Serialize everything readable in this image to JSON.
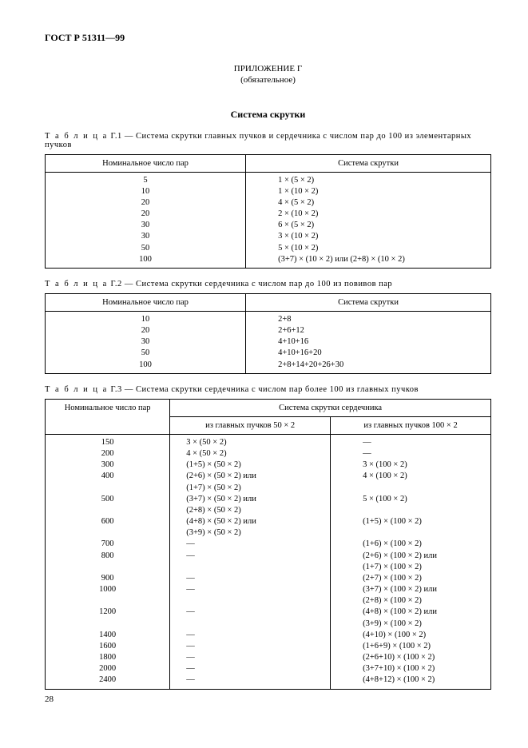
{
  "doc": {
    "header": "ГОСТ Р 51311—99",
    "appendix_title_line1": "ПРИЛОЖЕНИЕ Г",
    "appendix_title_line2": "(обязательное)",
    "section_title": "Система скрутки",
    "page_number": "28"
  },
  "table1": {
    "caption_prefix": "Т а б л и ц а",
    "caption_rest": "  Г.1 — Система скрутки главных пучков и сердечника с числом пар до 100  из элементарных пучков",
    "columns": [
      "Номинальное число пар",
      "Система скрутки"
    ],
    "col1": "5\n10\n20\n20\n30\n30\n50\n100",
    "col2": "1 × (5 × 2)\n1 × (10 × 2)\n4 × (5 × 2)\n2 × (10 × 2)\n6 × (5 × 2)\n3 × (10 × 2)\n5 × (10 × 2)\n(3+7) × (10 × 2) или (2+8) × (10 × 2)"
  },
  "table2": {
    "caption_prefix": "Т а б л и ц а",
    "caption_rest": " Г.2 — Система скрутки сердечника с числом пар до 100  из повивов пар",
    "columns": [
      "Номинальное число пар",
      "Система скрутки"
    ],
    "col1": "10\n20\n30\n50\n100",
    "col2": "2+8\n2+6+12\n4+10+16\n4+10+16+20\n2+8+14+20+26+30"
  },
  "table3": {
    "caption_prefix": "Т а б л и ц а",
    "caption_rest": "  Г.3 — Система скрутки сердечника с числом пар более 100  из главных пучков",
    "col1_header": "Номинальное число пар",
    "span_header": "Система скрутки сердечника",
    "col2_header": "из главных пучков 50 × 2",
    "col3_header": "из главных пучков 100 × 2",
    "col1": "150\n200\n300\n400\n\n500\n\n600\n\n700\n800\n\n900\n1000\n\n1200\n\n1400\n1600\n1800\n2000\n2400",
    "col2": "3 × (50 × 2)\n4 × (50 × 2)\n(1+5) × (50 × 2)\n(2+6) × (50 × 2) или\n(1+7) × (50 × 2)\n(3+7) × (50 × 2) или\n(2+8) × (50 × 2)\n(4+8) × (50 × 2) или\n(3+9) × (50 × 2)\n—\n—\n\n—\n—\n\n—\n\n—\n—\n—\n—\n—",
    "col3": "—\n—\n3 × (100 × 2)\n4 × (100 × 2)\n\n5 × (100 × 2)\n\n(1+5) × (100 × 2)\n\n(1+6) × (100 × 2)\n(2+6) × (100 × 2) или\n(1+7) × (100 × 2)\n(2+7) × (100 × 2)\n(3+7) × (100 × 2) или\n(2+8) × (100 × 2)\n(4+8) × (100 × 2) или\n(3+9) × (100 × 2)\n(4+10) × (100 × 2)\n(1+6+9) × (100 × 2)\n(2+6+10) × (100 × 2)\n(3+7+10) × (100 × 2)\n(4+8+12) × (100 × 2)"
  }
}
